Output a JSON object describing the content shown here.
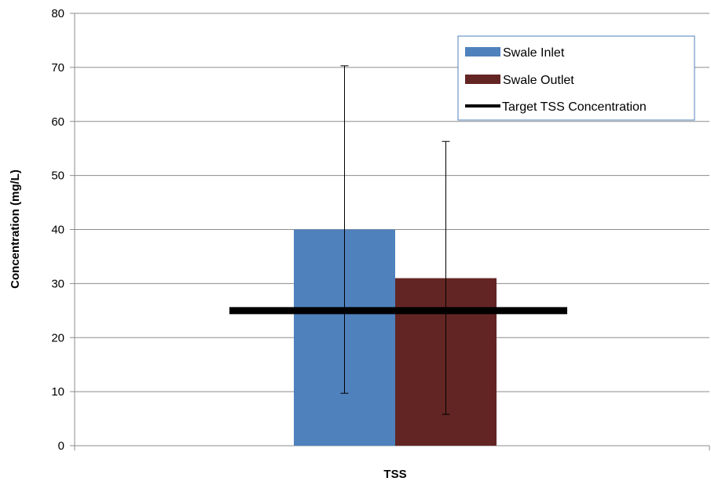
{
  "chart_data": {
    "type": "bar",
    "title": "",
    "xlabel": "",
    "ylabel": "Concentration (mg/L)",
    "categories": [
      "TSS"
    ],
    "ylim": [
      0,
      80
    ],
    "yticks": [
      0,
      10,
      20,
      30,
      40,
      50,
      60,
      70,
      80
    ],
    "grid": true,
    "legend_position": "top-right",
    "series": [
      {
        "name": "Swale Inlet",
        "values": [
          40
        ],
        "error_low": [
          9.7
        ],
        "error_high": [
          70.3
        ],
        "color": "#4F81BD"
      },
      {
        "name": "Swale Outlet",
        "values": [
          31
        ],
        "error_low": [
          5.8
        ],
        "error_high": [
          56.3
        ],
        "color": "#632523"
      }
    ],
    "reference_line": {
      "name": "Target TSS Concentration",
      "value": 25,
      "color": "#000000"
    }
  }
}
